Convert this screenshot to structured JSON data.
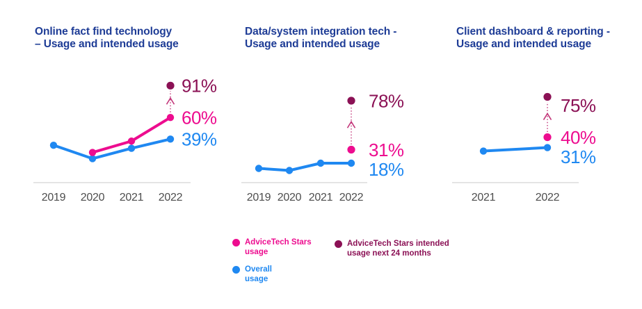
{
  "colors": {
    "pink": "#ED0C8F",
    "blue": "#1F88F1",
    "maroon": "#8B1155",
    "navy": "#1E3C96",
    "arrow": "#C23579",
    "axis": "#DBDBDB",
    "year": "#4D4D4D"
  },
  "chart_data": [
    {
      "type": "line",
      "title": "Online fact find technology – Usage and intended usage",
      "title_line1": "Online fact find technology",
      "title_line2": "– Usage and intended usage",
      "categories": [
        "2019",
        "2020",
        "2021",
        "2022"
      ],
      "ylim": [
        0,
        100
      ],
      "grid": false,
      "legend_position": "bottom",
      "series": [
        {
          "key": "overall-usage",
          "name": "Overall usage",
          "color_key": "blue",
          "values": [
            33,
            20,
            30,
            39
          ],
          "value_label": "39%"
        },
        {
          "key": "stars-usage",
          "name": "AdviceTech Stars usage",
          "color_key": "pink",
          "values": [
            null,
            26,
            37,
            60
          ],
          "value_label": "60%"
        },
        {
          "key": "intended-usage",
          "name": "AdviceTech Stars intended usage next 24 months",
          "color_key": "maroon",
          "values": [
            null,
            null,
            null,
            91
          ],
          "value_label": "91%",
          "marker_only": true,
          "arrow_from": "stars-usage"
        }
      ]
    },
    {
      "type": "line",
      "title": "Data/system integration tech - Usage and intended usage",
      "title_line1": "Data/system integration tech -",
      "title_line2": "Usage and intended usage",
      "categories": [
        "2019",
        "2020",
        "2021",
        "2022"
      ],
      "ylim": [
        0,
        100
      ],
      "grid": false,
      "legend_position": "bottom",
      "series": [
        {
          "key": "overall-usage",
          "name": "Overall usage",
          "color_key": "blue",
          "values": [
            13,
            11,
            18,
            18
          ],
          "value_label": "18%"
        },
        {
          "key": "stars-usage",
          "name": "AdviceTech Stars usage",
          "color_key": "pink",
          "values": [
            null,
            null,
            null,
            31
          ],
          "value_label": "31%",
          "marker_only": true
        },
        {
          "key": "intended-usage",
          "name": "AdviceTech Stars intended usage next 24 months",
          "color_key": "maroon",
          "values": [
            null,
            null,
            null,
            78
          ],
          "value_label": "78%",
          "marker_only": true,
          "arrow_from": "stars-usage"
        }
      ]
    },
    {
      "type": "line",
      "title": "Client dashboard & reporting - Usage and intended usage",
      "title_line1": "Client dashboard & reporting -",
      "title_line2": "Usage and intended usage",
      "categories": [
        "2021",
        "2022"
      ],
      "ylim": [
        0,
        100
      ],
      "grid": false,
      "legend_position": "bottom",
      "series": [
        {
          "key": "overall-usage",
          "name": "Overall usage",
          "color_key": "blue",
          "values": [
            28,
            31
          ],
          "value_label": "31%"
        },
        {
          "key": "stars-usage",
          "name": "AdviceTech Stars usage",
          "color_key": "pink",
          "values": [
            null,
            40
          ],
          "value_label": "40%",
          "marker_only": true
        },
        {
          "key": "intended-usage",
          "name": "AdviceTech Stars intended usage next 24 months",
          "color_key": "maroon",
          "values": [
            null,
            75
          ],
          "value_label": "75%",
          "marker_only": true,
          "arrow_from": "stars-usage"
        }
      ]
    }
  ],
  "legend": [
    {
      "line1": "AdviceTech Stars",
      "line2": "usage",
      "color_key": "pink"
    },
    {
      "line1": "Overall",
      "line2": "usage",
      "color_key": "blue"
    },
    {
      "line1": "AdviceTech Stars intended",
      "line2": "usage next 24 months",
      "color_key": "maroon"
    }
  ]
}
